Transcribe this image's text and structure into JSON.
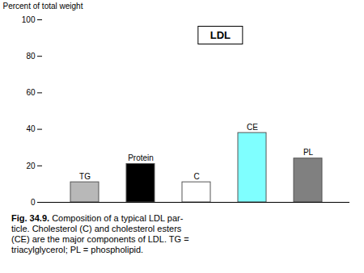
{
  "chart_data": {
    "type": "bar",
    "categories": [
      "TG",
      "Protein",
      "C",
      "CE",
      "PL"
    ],
    "values": [
      11,
      21,
      11,
      38,
      24
    ],
    "colors": [
      "#b8b8b8",
      "#000000",
      "#ffffff",
      "#7fffff",
      "#808080"
    ],
    "ylabel": "Percent of total weight",
    "ylim": [
      0,
      100
    ],
    "yticks": [
      0,
      20,
      40,
      60,
      80,
      100
    ],
    "grid": false,
    "tick_labels": "y",
    "annotations": [
      "LDL"
    ],
    "caption": [
      "Fig. 34.9.",
      "  Composition of a typical LDL par-\nticle.  Cholesterol (C) and cholesterol esters\n(CE) are the major components of LDL. TG =\ntriacylglycerol; PL = phospholipid."
    ]
  }
}
